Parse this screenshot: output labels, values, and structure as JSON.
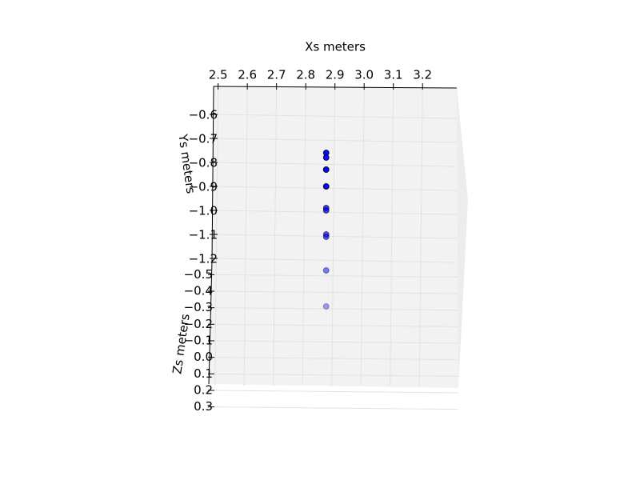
{
  "chart_data": {
    "type": "scatter3d",
    "xlabel": "Xs meters",
    "ylabel": "Ys meters",
    "zlabel": "Zs meters",
    "series": [
      {
        "color": "#0000ff",
        "x": [
          2.87,
          2.87,
          2.87,
          2.87,
          2.87,
          2.87,
          2.87,
          2.87,
          2.87,
          2.87,
          2.87,
          2.87
        ],
        "y": [
          -0.76,
          -0.78,
          -0.83,
          -0.83,
          -0.9,
          -0.9,
          -0.99,
          -1.0,
          -1.1,
          -1.11,
          -1.25,
          -1.4
        ],
        "z": [
          0,
          0,
          0,
          0,
          0,
          0,
          0,
          0,
          0,
          0,
          0,
          0
        ]
      }
    ],
    "xlim": [
      2.49,
      3.32
    ],
    "ylim": [
      -0.55,
      -1.27
    ],
    "zlim": [
      -0.55,
      0.35
    ],
    "xticks": [
      2.5,
      2.6,
      2.7,
      2.8,
      2.9,
      {
        "value": 3,
        "label": "3.0"
      },
      3.1,
      3.2
    ],
    "yticks": [
      {
        "value": -0.6,
        "label": "−0.6"
      },
      {
        "value": -0.7,
        "label": "−0.7"
      },
      {
        "value": -0.8,
        "label": "−0.8"
      },
      {
        "value": -0.9,
        "label": "−0.9"
      },
      {
        "value": -1,
        "label": "−1.0"
      },
      {
        "value": -1.1,
        "label": "−1.1"
      },
      {
        "value": -1.2,
        "label": "−1.2"
      }
    ],
    "zticks": [
      {
        "value": -0.5,
        "label": "−0.5"
      },
      {
        "value": -0.4,
        "label": "−0.4"
      },
      {
        "value": -0.3,
        "label": "−0.3"
      },
      {
        "value": -0.2,
        "label": "−0.2"
      },
      {
        "value": -0.1,
        "label": "−0.1"
      },
      {
        "value": 0,
        "label": "0.0"
      },
      0.1,
      0.2,
      0.3
    ],
    "grid": true
  }
}
